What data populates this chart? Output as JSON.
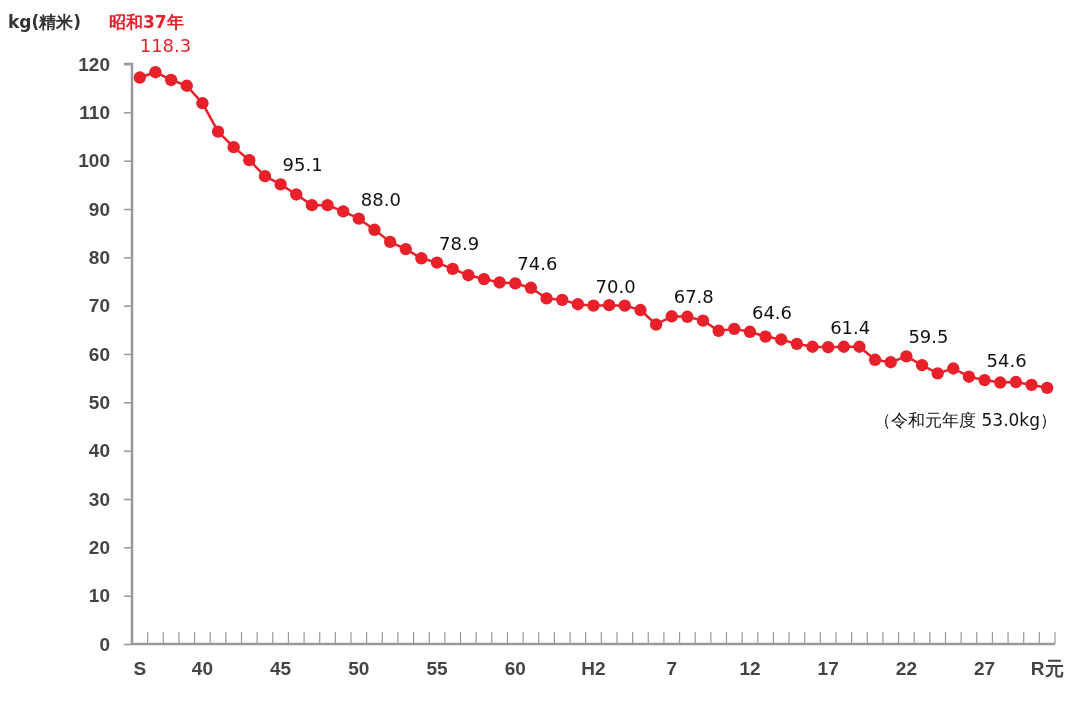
{
  "chart_data": {
    "type": "line",
    "ylabel": "kg(精米)",
    "categories": [
      "S",
      null,
      null,
      null,
      "40",
      null,
      null,
      null,
      null,
      "45",
      null,
      null,
      null,
      null,
      "50",
      null,
      null,
      null,
      null,
      "55",
      null,
      null,
      null,
      null,
      "60",
      null,
      null,
      null,
      null,
      "H2",
      null,
      null,
      null,
      null,
      "7",
      null,
      null,
      null,
      null,
      "12",
      null,
      null,
      null,
      null,
      "17",
      null,
      null,
      null,
      null,
      "22",
      null,
      null,
      null,
      null,
      "27",
      null,
      null,
      null,
      "R元"
    ],
    "series": [
      {
        "color": "#e8202a",
        "values": [
          117.2,
          118.3,
          116.7,
          115.5,
          111.9,
          106.0,
          102.8,
          100.1,
          96.8,
          95.1,
          93.0,
          90.8,
          90.8,
          89.5,
          88.0,
          85.7,
          83.2,
          81.7,
          79.8,
          78.9,
          77.6,
          76.3,
          75.5,
          74.8,
          74.6,
          73.7,
          71.5,
          71.2,
          70.3,
          70.0,
          70.1,
          70.0,
          69.1,
          66.1,
          67.8,
          67.7,
          66.9,
          64.8,
          65.2,
          64.6,
          63.6,
          63.0,
          62.1,
          61.5,
          61.4,
          61.5,
          61.5,
          58.8,
          58.3,
          59.5,
          57.7,
          56.0,
          57.0,
          55.3,
          54.6,
          54.1,
          54.2,
          53.6,
          53.0
        ],
        "value_labels": [
          null,
          "118.3",
          null,
          null,
          null,
          null,
          null,
          null,
          null,
          "95.1",
          null,
          null,
          null,
          null,
          "88.0",
          null,
          null,
          null,
          null,
          "78.9",
          null,
          null,
          null,
          null,
          "74.6",
          null,
          null,
          null,
          null,
          "70.0",
          null,
          null,
          null,
          null,
          "67.8",
          null,
          null,
          null,
          null,
          "64.6",
          null,
          null,
          null,
          null,
          "61.4",
          null,
          null,
          null,
          null,
          "59.5",
          null,
          null,
          null,
          null,
          "54.6",
          null,
          null,
          null,
          null
        ]
      }
    ],
    "ylim": [
      0,
      120
    ],
    "yticks": [
      0,
      10,
      20,
      30,
      40,
      50,
      60,
      70,
      80,
      90,
      100,
      110,
      120
    ],
    "grid": false,
    "marker": "circle",
    "line_style": "solid",
    "annotations": [
      "昭和37年",
      "（令和元年度 53.0kg）"
    ]
  }
}
